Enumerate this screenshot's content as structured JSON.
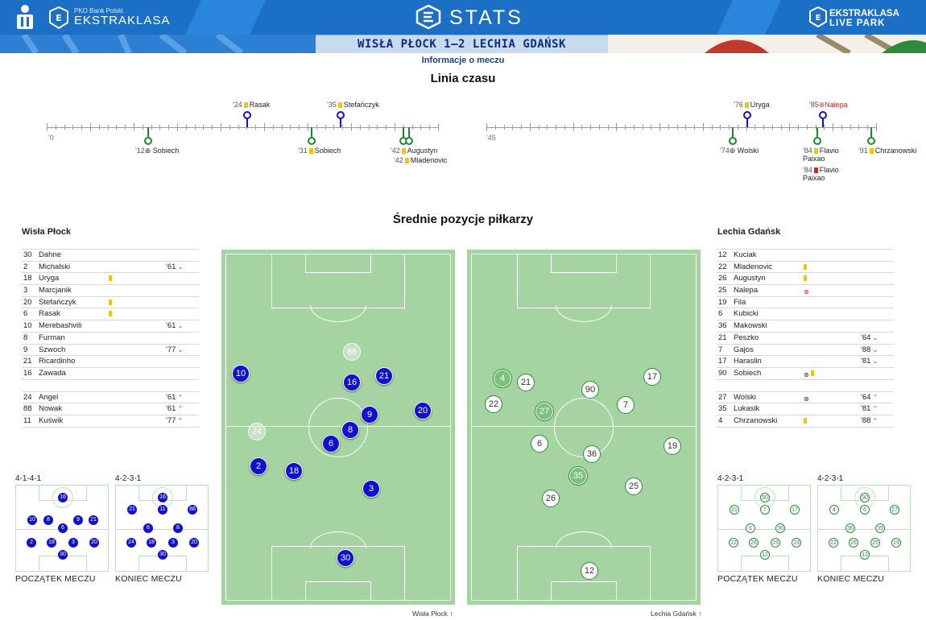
{
  "header": {
    "league_small": "PKO Bank Polski",
    "league_big": "EKSTRAKLASA",
    "stats_title": "STATS",
    "live_line1": "EKSTRAKLASA",
    "live_line2": "LIVE PARK",
    "score_title": "WISŁA PŁOCK 1–2 LECHIA GDAŃSK",
    "info_link": "Informacje o meczu"
  },
  "timeline": {
    "title": "Linia czasu",
    "first_half_start": "'0",
    "second_half_start": "'45",
    "home_events": [
      {
        "minute": "'24",
        "player": "Rasak",
        "type": "yellow"
      },
      {
        "minute": "'35",
        "player": "Stefańczyk",
        "type": "yellow"
      },
      {
        "minute": "'76",
        "player": "Uryga",
        "type": "yellow"
      },
      {
        "minute": "'85",
        "player": "Nalepa",
        "type": "own-goal"
      }
    ],
    "away_events": [
      {
        "minute": "'12",
        "player": "Sobiech",
        "type": "goal"
      },
      {
        "minute": "'31",
        "player": "Sobiech",
        "type": "yellow"
      },
      {
        "minute": "'42",
        "player": "Augustyn",
        "type": "yellow"
      },
      {
        "minute": "'42",
        "player": "Mladenovic",
        "type": "yellow"
      },
      {
        "minute": "'74",
        "player": "Wolski",
        "type": "goal"
      },
      {
        "minute": "'84",
        "player": "Flavio Paixao",
        "type": "yellow"
      },
      {
        "minute": "'84",
        "player": "Flavio Paixao",
        "type": "red"
      },
      {
        "minute": "'91",
        "player": "Chrzanowski",
        "type": "yellow"
      }
    ]
  },
  "positions_title": "Średnie pozycje piłkarzy",
  "home": {
    "name": "Wisła Płock",
    "starters": [
      {
        "num": "30",
        "name": "Dahne"
      },
      {
        "num": "2",
        "name": "Michalski",
        "sub": "'61"
      },
      {
        "num": "18",
        "name": "Uryga",
        "card": "yellow"
      },
      {
        "num": "3",
        "name": "Marcjanik"
      },
      {
        "num": "20",
        "name": "Stefańczyk",
        "card": "yellow"
      },
      {
        "num": "6",
        "name": "Rasak",
        "card": "yellow"
      },
      {
        "num": "10",
        "name": "Merebashvili",
        "sub": "'61"
      },
      {
        "num": "8",
        "name": "Furman"
      },
      {
        "num": "9",
        "name": "Szwoch",
        "sub": "'77"
      },
      {
        "num": "21",
        "name": "Ricardinho"
      },
      {
        "num": "16",
        "name": "Zawada"
      }
    ],
    "subs": [
      {
        "num": "24",
        "name": "Angel",
        "sub": "'61"
      },
      {
        "num": "88",
        "name": "Nowak",
        "sub": "'61"
      },
      {
        "num": "11",
        "name": "Kuświk",
        "sub": "'77"
      }
    ],
    "pitch_label": "Wisła Płock",
    "formation_start": "4-1-4-1",
    "formation_end": "4-2-3-1",
    "caption_start": "POCZĄTEK MECZU",
    "caption_end": "KONIEC MECZU",
    "players": [
      {
        "n": "88",
        "faded": true
      },
      {
        "n": "10"
      },
      {
        "n": "16"
      },
      {
        "n": "21"
      },
      {
        "n": "20"
      },
      {
        "n": "9"
      },
      {
        "n": "24",
        "faded": true
      },
      {
        "n": "8"
      },
      {
        "n": "6"
      },
      {
        "n": "2"
      },
      {
        "n": "18"
      },
      {
        "n": "3"
      },
      {
        "n": "30"
      }
    ],
    "mini_start": [
      "16",
      "10",
      "8",
      "9",
      "21",
      "6",
      "2",
      "18",
      "3",
      "20",
      "30"
    ],
    "mini_end": [
      "16",
      "21",
      "11",
      "88",
      "6",
      "8",
      "24",
      "18",
      "3",
      "20",
      "30"
    ]
  },
  "away": {
    "name": "Lechia Gdańsk",
    "starters": [
      {
        "num": "12",
        "name": "Kuciak"
      },
      {
        "num": "22",
        "name": "Mladenovic",
        "card": "yellow"
      },
      {
        "num": "26",
        "name": "Augustyn",
        "card": "yellow"
      },
      {
        "num": "25",
        "name": "Nalepa",
        "ball": "own-goal"
      },
      {
        "num": "19",
        "name": "Fila"
      },
      {
        "num": "6",
        "name": "Kubicki"
      },
      {
        "num": "36",
        "name": "Makowski"
      },
      {
        "num": "21",
        "name": "Peszko",
        "sub": "'64"
      },
      {
        "num": "7",
        "name": "Gajos",
        "sub": "'88"
      },
      {
        "num": "17",
        "name": "Haraslin",
        "sub": "'81"
      },
      {
        "num": "90",
        "name": "Sobiech",
        "ball": "goal",
        "card": "yellow"
      }
    ],
    "subs": [
      {
        "num": "27",
        "name": "Wolski",
        "ball": "goal",
        "sub": "'64"
      },
      {
        "num": "35",
        "name": "Lukasik",
        "sub": "'81"
      },
      {
        "num": "4",
        "name": "Chrzanowski",
        "card": "yellow",
        "sub": "'88"
      }
    ],
    "pitch_label": "Lechia Gdańsk",
    "formation_start": "4-2-3-1",
    "formation_end": "4-2-3-1",
    "caption_start": "POCZĄTEK MECZU",
    "caption_end": "KONIEC MECZU",
    "players": [
      {
        "n": "4",
        "sub": true
      },
      {
        "n": "21"
      },
      {
        "n": "17"
      },
      {
        "n": "90"
      },
      {
        "n": "22"
      },
      {
        "n": "27",
        "sub": true
      },
      {
        "n": "7"
      },
      {
        "n": "6"
      },
      {
        "n": "36"
      },
      {
        "n": "19"
      },
      {
        "n": "35",
        "sub": true
      },
      {
        "n": "25"
      },
      {
        "n": "26"
      },
      {
        "n": "12"
      }
    ],
    "mini_start": [
      "90",
      "21",
      "7",
      "17",
      "6",
      "36",
      "22",
      "26",
      "25",
      "19",
      "12"
    ],
    "mini_end": [
      "90",
      "4",
      "6",
      "27",
      "36",
      "35",
      "22",
      "26",
      "25",
      "19",
      "12"
    ]
  }
}
